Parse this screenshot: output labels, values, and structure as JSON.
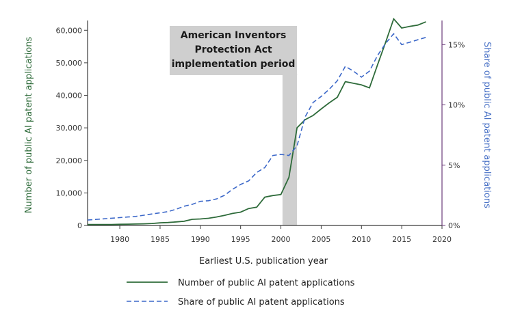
{
  "chart_data": {
    "type": "line",
    "xlabel": "Earliest U.S. publication year",
    "ylabel_left": "Number of public AI patent applications",
    "ylabel_right": "Share of public AI patent applications",
    "xlim": [
      1976,
      2020
    ],
    "ylim_left": [
      0,
      63000
    ],
    "ylim_right": [
      0,
      17
    ],
    "x_ticks": [
      1980,
      1985,
      1990,
      1995,
      2000,
      2005,
      2010,
      2015,
      2020
    ],
    "x_tick_labels": [
      "1980",
      "1985",
      "1990",
      "1995",
      "2000",
      "2005",
      "2010",
      "2015",
      "2020"
    ],
    "y_left_ticks": [
      0,
      10000,
      20000,
      30000,
      40000,
      50000,
      60000
    ],
    "y_left_tick_labels": [
      "0",
      "10,000",
      "20,000",
      "30,000",
      "40,000",
      "50,000",
      "60,000"
    ],
    "y_right_ticks": [
      0,
      5,
      10,
      15
    ],
    "y_right_tick_labels": [
      "0%",
      "5%",
      "10%",
      "15%"
    ],
    "grid": false,
    "legend_position": "bottom",
    "colors": {
      "count": "#2e6b3a",
      "share": "#3c68c9",
      "left_axis_title": "#2e6b3a",
      "right_axis_title": "#4a72c6",
      "axis": "#3a3a3a",
      "right_axis_line": "#6a3a78",
      "shade": "#cfcfcf"
    },
    "annotation": {
      "lines": [
        "American Inventors",
        "Protection Act",
        "implementation period"
      ],
      "x_start": 2000.2,
      "x_end": 2002
    },
    "series": [
      {
        "name": "Number of public AI patent applications",
        "axis": "left",
        "style": "solid",
        "x": [
          1976,
          1977,
          1978,
          1979,
          1980,
          1981,
          1982,
          1983,
          1984,
          1985,
          1986,
          1987,
          1988,
          1989,
          1990,
          1991,
          1992,
          1993,
          1994,
          1995,
          1996,
          1997,
          1998,
          1999,
          2000,
          2001,
          2002,
          2003,
          2004,
          2005,
          2006,
          2007,
          2008,
          2009,
          2010,
          2011,
          2012,
          2013,
          2014,
          2015,
          2016,
          2017,
          2018
        ],
        "values": [
          300,
          300,
          300,
          300,
          350,
          400,
          450,
          500,
          600,
          800,
          900,
          1100,
          1300,
          1900,
          2000,
          2200,
          2600,
          3100,
          3700,
          4100,
          5200,
          5600,
          8700,
          9200,
          9500,
          14800,
          30000,
          32500,
          33800,
          35800,
          37700,
          39400,
          44200,
          43700,
          43200,
          42300,
          49400,
          56300,
          63500,
          60700,
          61200,
          61600,
          62600
        ]
      },
      {
        "name": "Share of public AI patent applications",
        "axis": "right",
        "style": "dashed",
        "x": [
          1976,
          1977,
          1978,
          1979,
          1980,
          1981,
          1982,
          1983,
          1984,
          1985,
          1986,
          1987,
          1988,
          1989,
          1990,
          1991,
          1992,
          1993,
          1994,
          1995,
          1996,
          1997,
          1998,
          1999,
          2000,
          2001,
          2002,
          2003,
          2004,
          2005,
          2006,
          2007,
          2008,
          2009,
          2010,
          2011,
          2012,
          2013,
          2014,
          2015,
          2016,
          2017,
          2018
        ],
        "values": [
          0.45,
          0.5,
          0.55,
          0.6,
          0.65,
          0.7,
          0.75,
          0.85,
          0.95,
          1.05,
          1.15,
          1.35,
          1.6,
          1.75,
          2.0,
          2.05,
          2.2,
          2.5,
          3.0,
          3.4,
          3.7,
          4.4,
          4.8,
          5.8,
          5.9,
          5.8,
          6.6,
          9.0,
          10.2,
          10.7,
          11.3,
          12.0,
          13.2,
          12.8,
          12.3,
          12.8,
          14.1,
          15.1,
          15.9,
          15.0,
          15.2,
          15.4,
          15.6
        ]
      }
    ]
  }
}
